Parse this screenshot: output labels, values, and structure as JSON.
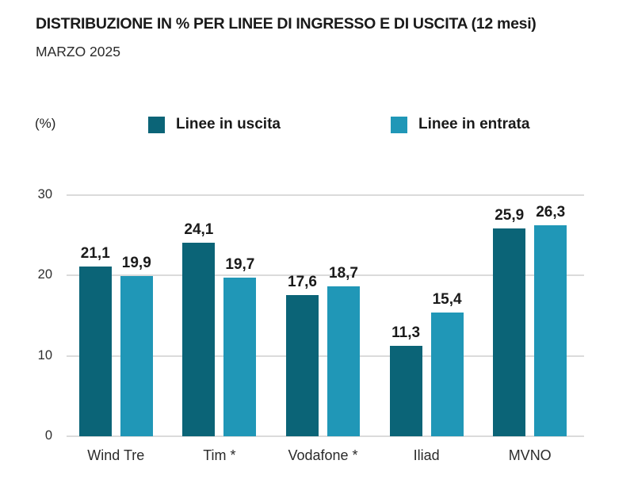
{
  "title": "DISTRIBUZIONE IN % PER LINEE DI INGRESSO E DI USCITA (12 mesi)",
  "subtitle": "MARZO 2025",
  "unit_label": "(%)",
  "colors": {
    "uscita": "#0B6477",
    "entrata": "#2097B7",
    "gridline": "#DBDBDB",
    "text": "#1A1A1A"
  },
  "legend": [
    {
      "label": "Linee in uscita",
      "color_key": "uscita"
    },
    {
      "label": "Linee in entrata",
      "color_key": "entrata"
    }
  ],
  "chart_data": {
    "type": "bar",
    "title": "DISTRIBUZIONE IN % PER LINEE DI INGRESSO E DI USCITA (12 mesi)",
    "subtitle": "MARZO 2025",
    "ylabel": "(%)",
    "categories": [
      "Wind Tre",
      "Tim *",
      "Vodafone *",
      "Iliad",
      "MVNO"
    ],
    "series": [
      {
        "name": "Linee in uscita",
        "color_key": "uscita",
        "values": [
          21.1,
          24.1,
          17.6,
          11.3,
          25.9
        ],
        "display_values": [
          "21,1",
          "24,1",
          "17,6",
          "11,3",
          "25,9"
        ]
      },
      {
        "name": "Linee in entrata",
        "color_key": "entrata",
        "values": [
          19.9,
          19.7,
          18.7,
          15.4,
          26.3
        ],
        "display_values": [
          "19,9",
          "19,7",
          "18,7",
          "15,4",
          "26,3"
        ]
      }
    ],
    "ylim": [
      0,
      30
    ],
    "yticks": [
      0,
      10,
      20,
      30
    ],
    "grid": true,
    "legend_position": "top",
    "decimal_separator": ","
  }
}
